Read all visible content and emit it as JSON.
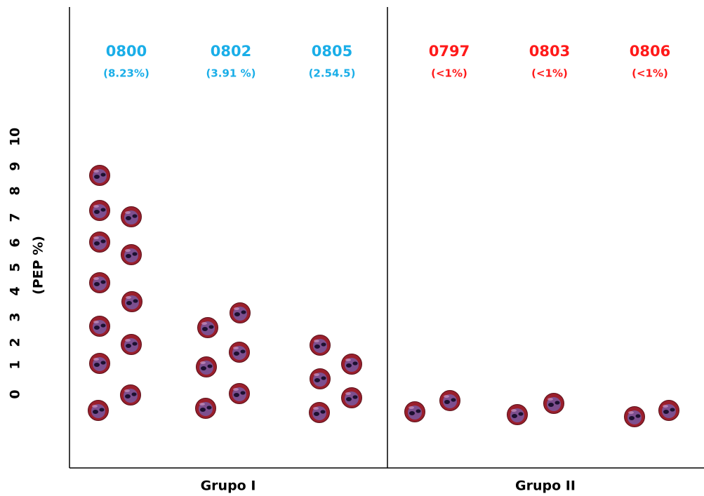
{
  "y_axis": {
    "ticks": [
      0,
      1,
      2,
      3,
      4,
      5,
      6,
      7,
      8,
      9,
      10
    ],
    "label": "(PEP %)"
  },
  "groups": [
    {
      "label": "Grupo I",
      "columns": [
        {
          "code": "0800",
          "note": "(8.23%)"
        },
        {
          "code": "0802",
          "note": "(3.91 %)"
        },
        {
          "code": "0805",
          "note": "(2.54.5)"
        }
      ]
    },
    {
      "label": "Grupo II",
      "columns": [
        {
          "code": "0797",
          "note": "(<1%)"
        },
        {
          "code": "0803",
          "note": "(<1%)"
        },
        {
          "code": "0806",
          "note": "(<1%)"
        }
      ]
    }
  ]
}
